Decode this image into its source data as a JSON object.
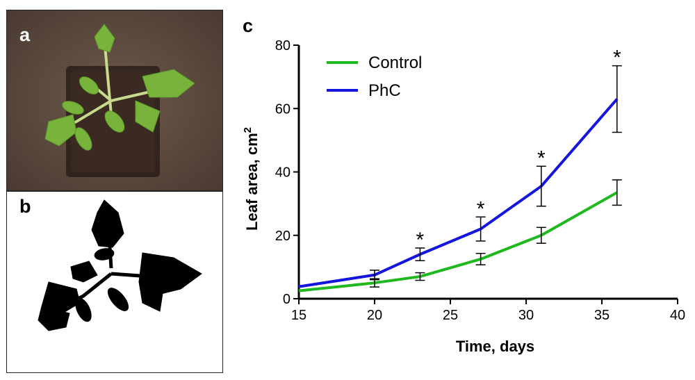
{
  "panels": {
    "a": {
      "letter": "a"
    },
    "b": {
      "letter": "b"
    },
    "c": {
      "letter": "c"
    }
  },
  "chart_data": {
    "type": "line",
    "xlabel": "Time, days",
    "ylabel": "Leaf area, cm",
    "ylabel_superscript": "2",
    "xlim": [
      15,
      40
    ],
    "ylim": [
      0,
      80
    ],
    "xticks": [
      15,
      20,
      25,
      30,
      35,
      40
    ],
    "yticks": [
      0,
      20,
      40,
      60,
      80
    ],
    "legend": "top-left",
    "series": [
      {
        "name": "Control",
        "color": "#1fb81f",
        "x": [
          15,
          20,
          23,
          27,
          31,
          36
        ],
        "y": [
          2.5,
          5.0,
          7.0,
          12.5,
          20.0,
          33.5
        ],
        "err": [
          0,
          1.3,
          1.2,
          1.8,
          2.5,
          4.0
        ]
      },
      {
        "name": "PhC",
        "color": "#1515e0",
        "x": [
          15,
          20,
          23,
          27,
          31,
          36
        ],
        "y": [
          3.8,
          7.5,
          14.0,
          22.0,
          35.5,
          63.0
        ],
        "err": [
          0,
          1.5,
          2.0,
          3.8,
          6.3,
          10.5
        ]
      }
    ],
    "annotations": [
      {
        "text": "*",
        "x": 23,
        "y": 16.0
      },
      {
        "text": "*",
        "x": 27,
        "y": 25.8
      },
      {
        "text": "*",
        "x": 31,
        "y": 41.8
      },
      {
        "text": "*",
        "x": 36,
        "y": 73.5
      }
    ]
  }
}
